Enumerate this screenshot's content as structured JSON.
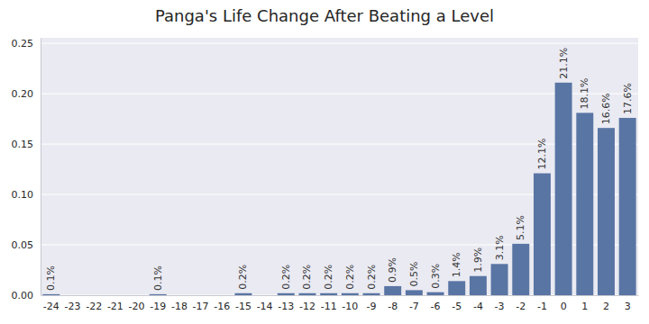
{
  "chart_data": {
    "type": "bar",
    "title": "Panga's Life Change After Beating a Level",
    "categories": [
      "-24",
      "-23",
      "-22",
      "-21",
      "-20",
      "-19",
      "-18",
      "-17",
      "-16",
      "-15",
      "-14",
      "-13",
      "-12",
      "-11",
      "-10",
      "-9",
      "-8",
      "-7",
      "-6",
      "-5",
      "-4",
      "-3",
      "-2",
      "-1",
      "0",
      "1",
      "2",
      "3"
    ],
    "values": [
      0.001,
      0,
      0,
      0,
      0,
      0.001,
      0,
      0,
      0,
      0.002,
      0,
      0.002,
      0.002,
      0.002,
      0.002,
      0.002,
      0.009,
      0.005,
      0.003,
      0.014,
      0.019,
      0.031,
      0.051,
      0.121,
      0.211,
      0.181,
      0.166,
      0.176
    ],
    "value_labels": [
      "0.1%",
      null,
      null,
      null,
      null,
      "0.1%",
      null,
      null,
      null,
      "0.2%",
      null,
      "0.2%",
      "0.2%",
      "0.2%",
      "0.2%",
      "0.2%",
      "0.9%",
      "0.5%",
      "0.3%",
      "1.4%",
      "1.9%",
      "3.1%",
      "5.1%",
      "12.1%",
      "21.1%",
      "18.1%",
      "16.6%",
      "17.6%"
    ],
    "color": "#5975a4",
    "ylim": [
      0,
      0.2555
    ],
    "yticks": [
      {
        "value": 0,
        "label": "0.00"
      },
      0.05,
      {
        "value": 0.1,
        "label": "0.10"
      },
      0.15,
      {
        "value": 0.2,
        "label": "0.20"
      },
      0.25
    ],
    "grid": true,
    "data_labels": true
  }
}
